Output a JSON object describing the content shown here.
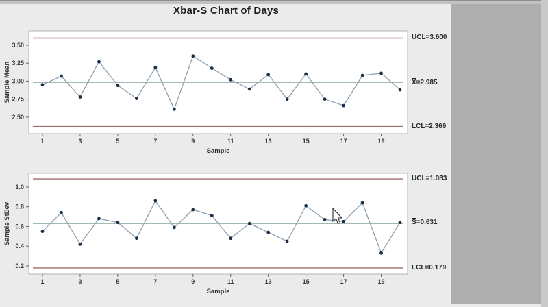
{
  "title": "Xbar-S Chart of Days",
  "colors": {
    "limit_line": "#a06a6e",
    "center_line": "#6b9080",
    "series_line": "#8ba0b3",
    "marker": "#1b2f45",
    "plot_border": "#b3b3b3",
    "plot_background": "#ffffff",
    "window_background": "#ebebeb",
    "side_panel": "#aeaeae"
  },
  "chart_data": [
    {
      "type": "line",
      "name": "xbar-chart",
      "title": "Xbar-S Chart of Days",
      "xlabel": "Sample",
      "ylabel": "Sample Mean",
      "x": [
        1,
        2,
        3,
        4,
        5,
        6,
        7,
        8,
        9,
        10,
        11,
        12,
        13,
        14,
        15,
        16,
        17,
        18,
        19,
        20
      ],
      "values": [
        2.95,
        3.07,
        2.78,
        3.27,
        2.94,
        2.76,
        3.19,
        2.61,
        3.35,
        3.18,
        3.02,
        2.89,
        3.09,
        2.75,
        3.1,
        2.75,
        2.66,
        3.08,
        3.11,
        2.88
      ],
      "ucl": 3.6,
      "center": 2.985,
      "lcl": 2.369,
      "labels": {
        "ucl": "UCL=3.600",
        "lcl": "LCL=2.369",
        "center_symbol": "X",
        "center_value": "=2.985",
        "center_bar": "double"
      },
      "yticks": [
        3.5,
        3.25,
        3.0,
        2.75,
        2.5
      ],
      "ytick_labels": [
        "3.50",
        "3.25",
        "3.00",
        "2.75",
        "2.50"
      ],
      "xticks": [
        1,
        3,
        5,
        7,
        9,
        11,
        13,
        15,
        17,
        19
      ],
      "xtick_labels": [
        "1",
        "3",
        "5",
        "7",
        "9",
        "11",
        "13",
        "15",
        "17",
        "19"
      ],
      "ylim": [
        2.27,
        3.7
      ],
      "grid": false,
      "legend": "none"
    },
    {
      "type": "line",
      "name": "s-chart",
      "title": "",
      "xlabel": "Sample",
      "ylabel": "Sample StDev",
      "x": [
        1,
        2,
        3,
        4,
        5,
        6,
        7,
        8,
        9,
        10,
        11,
        12,
        13,
        14,
        15,
        16,
        17,
        18,
        19,
        20
      ],
      "values": [
        0.55,
        0.74,
        0.42,
        0.68,
        0.64,
        0.48,
        0.86,
        0.59,
        0.77,
        0.71,
        0.48,
        0.63,
        0.54,
        0.45,
        0.81,
        0.67,
        0.65,
        0.84,
        0.33,
        0.64
      ],
      "ucl": 1.083,
      "center": 0.631,
      "lcl": 0.179,
      "labels": {
        "ucl": "UCL=1.083",
        "lcl": "LCL=0.179",
        "center_symbol": "S",
        "center_value": "=0.631",
        "center_bar": "single"
      },
      "yticks": [
        1.0,
        0.8,
        0.6,
        0.4,
        0.2
      ],
      "ytick_labels": [
        "1.0",
        "0.8",
        "0.6",
        "0.4",
        "0.2"
      ],
      "xticks": [
        1,
        3,
        5,
        7,
        9,
        11,
        13,
        15,
        17,
        19
      ],
      "xtick_labels": [
        "1",
        "3",
        "5",
        "7",
        "9",
        "11",
        "13",
        "15",
        "17",
        "19"
      ],
      "ylim": [
        0.116,
        1.139
      ],
      "grid": false,
      "legend": "none"
    }
  ]
}
